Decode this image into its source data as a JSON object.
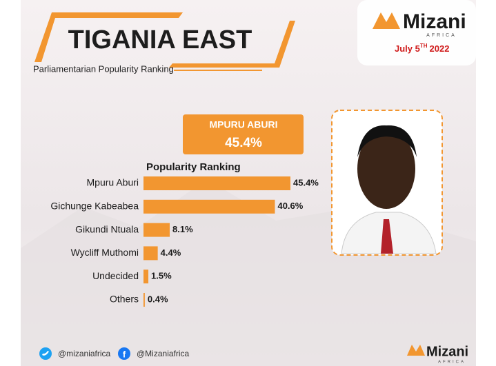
{
  "brand": {
    "name": "Mizani",
    "sub": "AFRICA",
    "date_main": "July 5",
    "date_sup": "TH",
    "date_year": "2022"
  },
  "header": {
    "title": "TIGANIA EAST",
    "subtitle": "Parliamentarian Popularity Ranking"
  },
  "highlight": {
    "name": "MPURU ABURI",
    "value": "45.4%"
  },
  "chart_data": {
    "type": "bar",
    "orientation": "horizontal",
    "title": "Popularity Ranking",
    "categories": [
      "Mpuru Aburi",
      "Gichunge Kabeabea",
      "Gikundi Ntuala",
      "Wycliff Muthomi",
      "Undecided",
      "Others"
    ],
    "values": [
      45.4,
      40.6,
      8.1,
      4.4,
      1.5,
      0.4
    ],
    "value_labels": [
      "45.4%",
      "40.6%",
      "8.1%",
      "4.4%",
      "1.5%",
      "0.4%"
    ],
    "color": "#f29630"
  },
  "footer": {
    "twitter": "@mizaniafrica",
    "facebook": "@Mizaniafrica",
    "brand": "Mizani",
    "brand_sub": "AFRICA"
  }
}
